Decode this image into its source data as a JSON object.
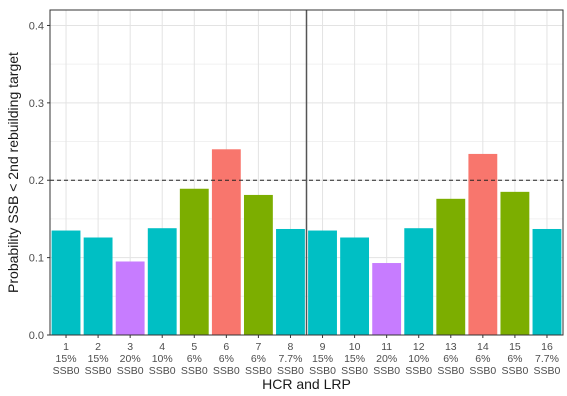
{
  "chart_data": {
    "type": "bar",
    "title": "",
    "xlabel": "HCR and LRP",
    "ylabel": "Probability SSB < 2nd rebuilding target",
    "ylim": [
      0,
      0.42
    ],
    "yticks": [
      "0.0",
      "0.1",
      "0.2",
      "0.3",
      "0.4"
    ],
    "ytick_values": [
      0,
      0.1,
      0.2,
      0.3,
      0.4
    ],
    "grid": true,
    "reference_line": {
      "y": 0.2,
      "style": "dashed"
    },
    "divider_after_category": 8,
    "categories": [
      {
        "id": "1",
        "pct": "15%",
        "lrp": "SSB0"
      },
      {
        "id": "2",
        "pct": "15%",
        "lrp": "SSB0"
      },
      {
        "id": "3",
        "pct": "20%",
        "lrp": "SSB0"
      },
      {
        "id": "4",
        "pct": "10%",
        "lrp": "SSB0"
      },
      {
        "id": "5",
        "pct": "6%",
        "lrp": "SSB0"
      },
      {
        "id": "6",
        "pct": "6%",
        "lrp": "SSB0"
      },
      {
        "id": "7",
        "pct": "6%",
        "lrp": "SSB0"
      },
      {
        "id": "8",
        "pct": "7.7%",
        "lrp": "SSB0"
      },
      {
        "id": "9",
        "pct": "15%",
        "lrp": "SSB0"
      },
      {
        "id": "10",
        "pct": "15%",
        "lrp": "SSB0"
      },
      {
        "id": "11",
        "pct": "20%",
        "lrp": "SSB0"
      },
      {
        "id": "12",
        "pct": "10%",
        "lrp": "SSB0"
      },
      {
        "id": "13",
        "pct": "6%",
        "lrp": "SSB0"
      },
      {
        "id": "14",
        "pct": "6%",
        "lrp": "SSB0"
      },
      {
        "id": "15",
        "pct": "6%",
        "lrp": "SSB0"
      },
      {
        "id": "16",
        "pct": "7.7%",
        "lrp": "SSB0"
      }
    ],
    "values": [
      0.135,
      0.126,
      0.095,
      0.138,
      0.189,
      0.24,
      0.181,
      0.137,
      0.135,
      0.126,
      0.093,
      0.138,
      0.176,
      0.234,
      0.185,
      0.137
    ],
    "bar_colors": [
      "#00BFC4",
      "#00BFC4",
      "#C77CFF",
      "#00BFC4",
      "#7CAE00",
      "#F8766D",
      "#7CAE00",
      "#00BFC4",
      "#00BFC4",
      "#00BFC4",
      "#C77CFF",
      "#00BFC4",
      "#7CAE00",
      "#F8766D",
      "#7CAE00",
      "#00BFC4"
    ],
    "colors": {
      "panel_bg": "#ffffff",
      "grid_major": "#e3e3e3",
      "grid_minor": "#f1f1f1",
      "border": "#333333",
      "text": "#4d4d4d",
      "axis_title": "#1a1a1a"
    }
  }
}
